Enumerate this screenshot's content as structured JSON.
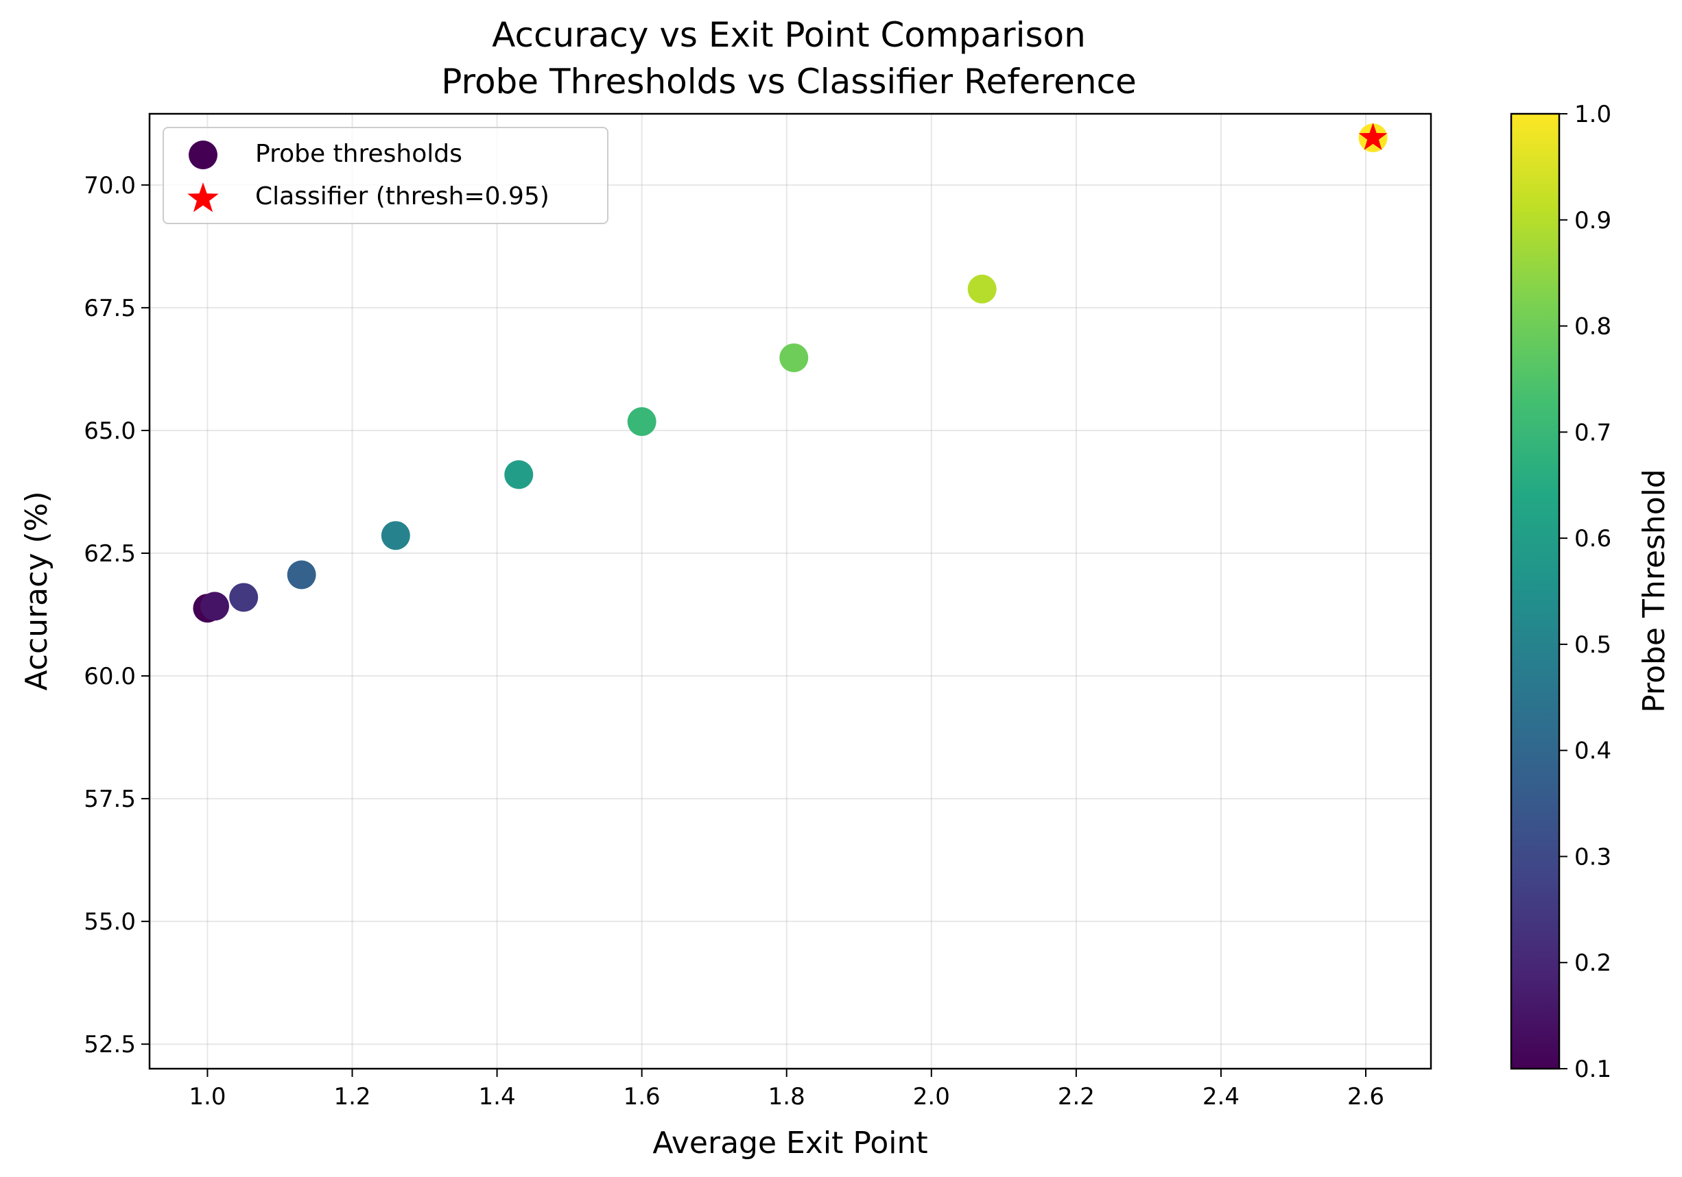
{
  "chart_data": {
    "type": "scatter",
    "title_line1": "Accuracy vs Exit Point Comparison",
    "title_line2": "Probe Thresholds vs Classifier Reference",
    "xlabel": "Average Exit Point",
    "ylabel": "Accuracy (%)",
    "xlim": [
      0.92,
      2.69
    ],
    "ylim": [
      52.0,
      71.45
    ],
    "xticks": [
      "1.0",
      "1.2",
      "1.4",
      "1.6",
      "1.8",
      "2.0",
      "2.2",
      "2.4",
      "2.6"
    ],
    "yticks": [
      "52.5",
      "55.0",
      "57.5",
      "60.0",
      "62.5",
      "65.0",
      "67.5",
      "70.0"
    ],
    "grid": true,
    "legend_position": "top-left",
    "colormap": "viridis",
    "colorbar": {
      "label": "Probe Threshold",
      "range": [
        0.1,
        1.0
      ],
      "ticks": [
        "0.1",
        "0.2",
        "0.3",
        "0.4",
        "0.5",
        "0.6",
        "0.7",
        "0.8",
        "0.9",
        "1.0"
      ]
    },
    "series": [
      {
        "name": "Probe thresholds",
        "marker": "circle",
        "points": [
          {
            "x": 1.0,
            "y": 61.38,
            "threshold": 0.1
          },
          {
            "x": 1.01,
            "y": 61.42,
            "threshold": 0.15
          },
          {
            "x": 1.05,
            "y": 61.6,
            "threshold": 0.25
          },
          {
            "x": 1.13,
            "y": 62.06,
            "threshold": 0.38
          },
          {
            "x": 1.26,
            "y": 62.86,
            "threshold": 0.5
          },
          {
            "x": 1.43,
            "y": 64.1,
            "threshold": 0.6
          },
          {
            "x": 1.6,
            "y": 65.18,
            "threshold": 0.7
          },
          {
            "x": 1.81,
            "y": 66.48,
            "threshold": 0.8
          },
          {
            "x": 2.07,
            "y": 67.88,
            "threshold": 0.9
          },
          {
            "x": 2.61,
            "y": 70.96,
            "threshold": 1.0
          }
        ]
      },
      {
        "name": "Classifier (thresh=0.95)",
        "marker": "star",
        "color": "#ff0000",
        "points": [
          {
            "x": 2.61,
            "y": 70.96
          }
        ]
      }
    ]
  }
}
